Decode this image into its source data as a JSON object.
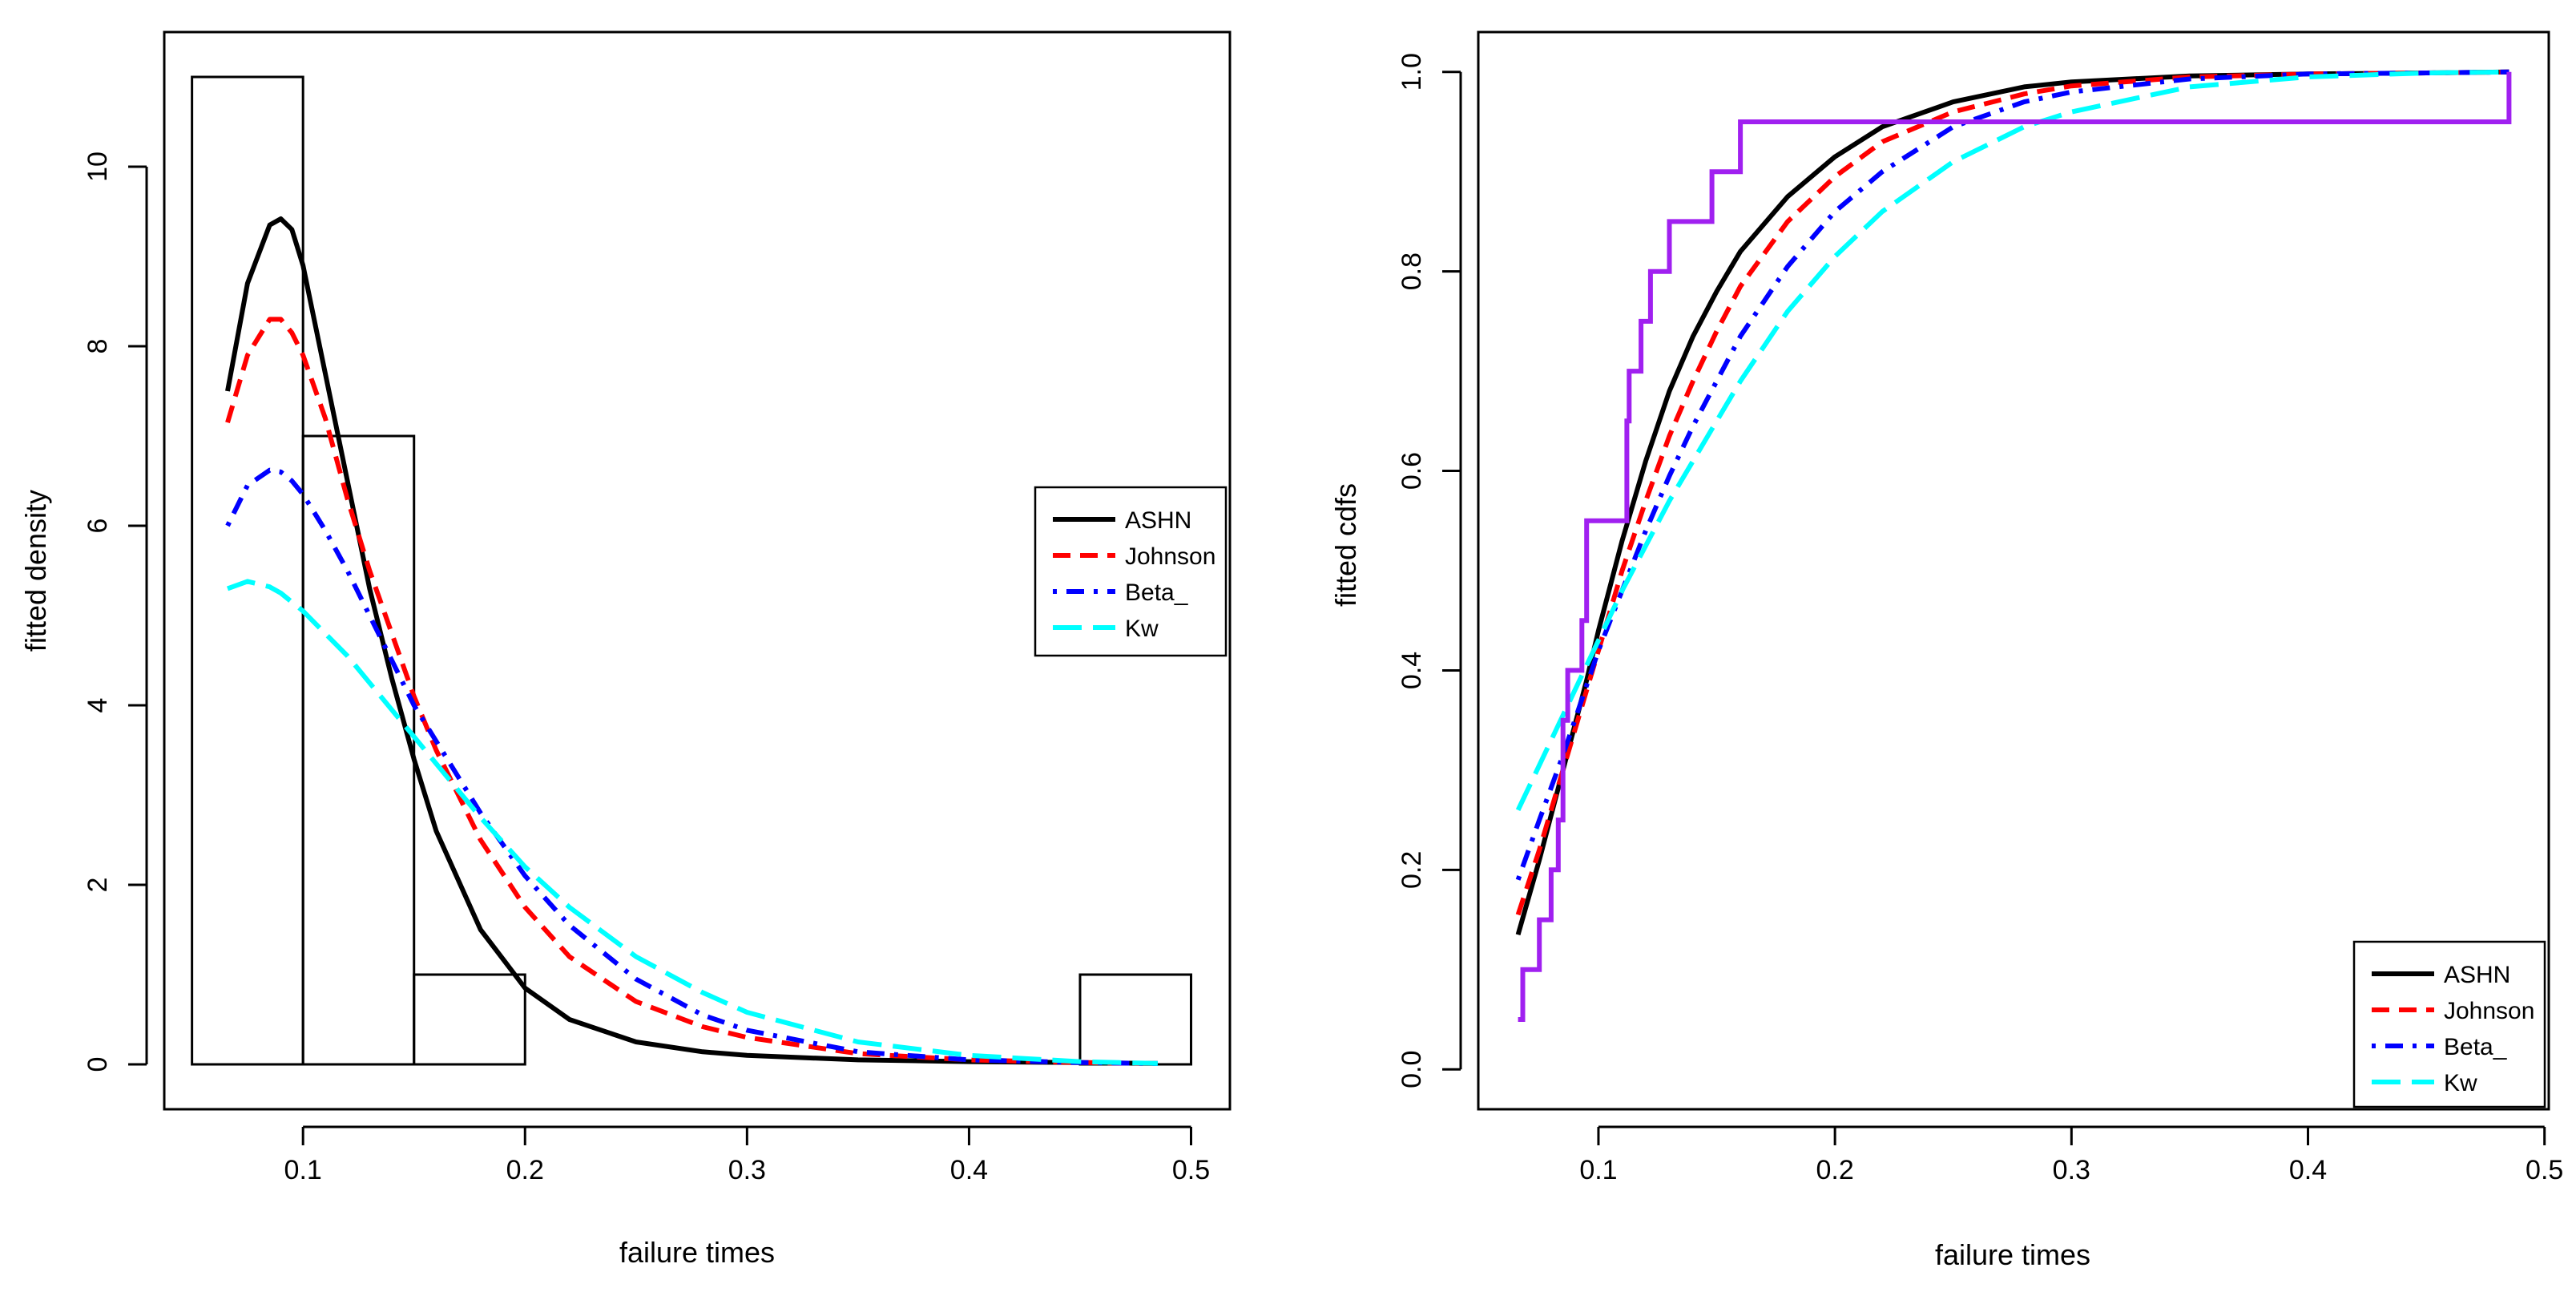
{
  "colors": {
    "asha": "#000000",
    "johnson": "#ff0000",
    "beta": "#0000ff",
    "kw": "#00ffff",
    "ecdf": "#a020f0"
  },
  "chart_data": [
    {
      "type": "histogram",
      "xlabel": "failure times",
      "ylabel": "fitted density",
      "xlim": [
        0.0375,
        0.5175
      ],
      "ylim": [
        -0.5,
        11.5
      ],
      "xticks": [
        0.1,
        0.2,
        0.3,
        0.4,
        0.5
      ],
      "xtick_labels": [
        "0.1",
        "0.2",
        "0.3",
        "0.4",
        "0.5"
      ],
      "yticks": [
        0,
        2,
        4,
        6,
        8,
        10
      ],
      "ytick_labels": [
        "0",
        "2",
        "4",
        "6",
        "8",
        "10"
      ],
      "bins": [
        {
          "from": 0.05,
          "to": 0.1,
          "density": 11
        },
        {
          "from": 0.1,
          "to": 0.15,
          "density": 7
        },
        {
          "from": 0.15,
          "to": 0.2,
          "density": 1
        },
        {
          "from": 0.2,
          "to": 0.25,
          "density": 0
        },
        {
          "from": 0.25,
          "to": 0.3,
          "density": 0
        },
        {
          "from": 0.3,
          "to": 0.35,
          "density": 0
        },
        {
          "from": 0.35,
          "to": 0.4,
          "density": 0
        },
        {
          "from": 0.4,
          "to": 0.45,
          "density": 0
        },
        {
          "from": 0.45,
          "to": 0.5,
          "density": 1
        }
      ],
      "legend": {
        "position": "right",
        "entries": [
          "ASHN",
          "Johnson",
          "Beta_",
          "Kw"
        ]
      },
      "series": [
        {
          "name": "ASHN",
          "style": "solid",
          "color": "#000000",
          "x": [
            0.066,
            0.075,
            0.085,
            0.09,
            0.095,
            0.1,
            0.11,
            0.12,
            0.13,
            0.14,
            0.15,
            0.16,
            0.18,
            0.2,
            0.22,
            0.25,
            0.28,
            0.3,
            0.35,
            0.4,
            0.45,
            0.485
          ],
          "y": [
            7.5,
            8.7,
            9.35,
            9.42,
            9.3,
            8.9,
            7.7,
            6.5,
            5.3,
            4.3,
            3.4,
            2.6,
            1.5,
            0.85,
            0.5,
            0.25,
            0.14,
            0.1,
            0.05,
            0.03,
            0.02,
            0.01
          ]
        },
        {
          "name": "Johnson",
          "style": "dashed",
          "color": "#ff0000",
          "x": [
            0.066,
            0.075,
            0.085,
            0.09,
            0.095,
            0.1,
            0.11,
            0.12,
            0.13,
            0.14,
            0.15,
            0.16,
            0.18,
            0.2,
            0.22,
            0.25,
            0.28,
            0.3,
            0.35,
            0.4,
            0.45,
            0.485
          ],
          "y": [
            7.15,
            7.9,
            8.3,
            8.3,
            8.15,
            7.9,
            7.2,
            6.3,
            5.5,
            4.8,
            4.1,
            3.5,
            2.5,
            1.75,
            1.2,
            0.7,
            0.42,
            0.3,
            0.12,
            0.05,
            0.02,
            0.01
          ]
        },
        {
          "name": "Beta_",
          "style": "dotdash",
          "color": "#0000ff",
          "x": [
            0.066,
            0.075,
            0.085,
            0.09,
            0.095,
            0.1,
            0.11,
            0.12,
            0.13,
            0.14,
            0.15,
            0.16,
            0.18,
            0.2,
            0.22,
            0.25,
            0.28,
            0.3,
            0.35,
            0.4,
            0.45,
            0.485
          ],
          "y": [
            6.0,
            6.45,
            6.62,
            6.6,
            6.5,
            6.35,
            5.95,
            5.5,
            5.0,
            4.5,
            4.0,
            3.6,
            2.8,
            2.1,
            1.55,
            0.95,
            0.55,
            0.38,
            0.14,
            0.05,
            0.02,
            0.01
          ]
        },
        {
          "name": "Kw",
          "style": "longdash",
          "color": "#00ffff",
          "x": [
            0.066,
            0.075,
            0.085,
            0.09,
            0.095,
            0.1,
            0.11,
            0.12,
            0.13,
            0.14,
            0.15,
            0.16,
            0.18,
            0.2,
            0.22,
            0.25,
            0.28,
            0.3,
            0.35,
            0.4,
            0.45,
            0.485
          ],
          "y": [
            5.3,
            5.38,
            5.32,
            5.25,
            5.15,
            5.05,
            4.8,
            4.55,
            4.25,
            3.95,
            3.65,
            3.35,
            2.75,
            2.2,
            1.75,
            1.2,
            0.8,
            0.58,
            0.25,
            0.1,
            0.03,
            0.01
          ]
        }
      ]
    },
    {
      "type": "line",
      "xlabel": "failure times",
      "ylabel": "fitted cdfs",
      "xlim": [
        0.0492,
        0.5018
      ],
      "ylim": [
        -0.04,
        1.04
      ],
      "xticks": [
        0.1,
        0.2,
        0.3,
        0.4,
        0.5
      ],
      "xtick_labels": [
        "0.1",
        "0.2",
        "0.3",
        "0.4",
        "0.5"
      ],
      "yticks": [
        0.0,
        0.2,
        0.4,
        0.6,
        0.8,
        1.0
      ],
      "ytick_labels": [
        "0.0",
        "0.2",
        "0.4",
        "0.6",
        "0.8",
        "1.0"
      ],
      "legend": {
        "position": "bottom-right",
        "entries": [
          "ASHN",
          "Johnson",
          "Beta_",
          "Kw"
        ]
      },
      "ecdf": {
        "color": "#a020f0",
        "x": [
          0.066,
          0.068,
          0.075,
          0.08,
          0.083,
          0.085,
          0.087,
          0.093,
          0.095,
          0.112,
          0.113,
          0.118,
          0.122,
          0.126,
          0.13,
          0.148,
          0.16,
          0.485
        ],
        "y": [
          0.05,
          0.1,
          0.15,
          0.2,
          0.25,
          0.35,
          0.4,
          0.45,
          0.55,
          0.65,
          0.7,
          0.75,
          0.8,
          0.8,
          0.85,
          0.9,
          0.95,
          1.0
        ]
      },
      "series": [
        {
          "name": "ASHN",
          "style": "solid",
          "color": "#000000",
          "x": [
            0.066,
            0.075,
            0.085,
            0.095,
            0.1,
            0.11,
            0.12,
            0.13,
            0.14,
            0.15,
            0.16,
            0.18,
            0.2,
            0.22,
            0.25,
            0.28,
            0.3,
            0.35,
            0.4,
            0.45,
            0.485
          ],
          "y": [
            0.135,
            0.21,
            0.3,
            0.39,
            0.44,
            0.53,
            0.61,
            0.68,
            0.735,
            0.78,
            0.82,
            0.875,
            0.915,
            0.945,
            0.97,
            0.985,
            0.99,
            0.996,
            0.998,
            0.999,
            1.0
          ]
        },
        {
          "name": "Johnson",
          "style": "dashed",
          "color": "#ff0000",
          "x": [
            0.066,
            0.075,
            0.085,
            0.095,
            0.1,
            0.11,
            0.12,
            0.13,
            0.14,
            0.15,
            0.16,
            0.18,
            0.2,
            0.22,
            0.25,
            0.28,
            0.3,
            0.35,
            0.4,
            0.45,
            0.485
          ],
          "y": [
            0.155,
            0.22,
            0.3,
            0.38,
            0.42,
            0.5,
            0.57,
            0.635,
            0.69,
            0.74,
            0.785,
            0.85,
            0.895,
            0.93,
            0.96,
            0.978,
            0.986,
            0.995,
            0.998,
            0.999,
            1.0
          ]
        },
        {
          "name": "Beta_",
          "style": "dotdash",
          "color": "#0000ff",
          "x": [
            0.066,
            0.075,
            0.085,
            0.095,
            0.1,
            0.11,
            0.12,
            0.13,
            0.14,
            0.15,
            0.16,
            0.18,
            0.2,
            0.22,
            0.25,
            0.28,
            0.3,
            0.35,
            0.4,
            0.45,
            0.485
          ],
          "y": [
            0.19,
            0.25,
            0.315,
            0.385,
            0.42,
            0.48,
            0.54,
            0.595,
            0.645,
            0.69,
            0.735,
            0.805,
            0.86,
            0.9,
            0.945,
            0.97,
            0.98,
            0.993,
            0.998,
            0.999,
            1.0
          ]
        },
        {
          "name": "Kw",
          "style": "longdash",
          "color": "#00ffff",
          "x": [
            0.066,
            0.075,
            0.085,
            0.095,
            0.1,
            0.11,
            0.12,
            0.13,
            0.14,
            0.15,
            0.16,
            0.18,
            0.2,
            0.22,
            0.25,
            0.28,
            0.3,
            0.35,
            0.4,
            0.45,
            0.485
          ],
          "y": [
            0.26,
            0.305,
            0.355,
            0.405,
            0.43,
            0.48,
            0.525,
            0.57,
            0.61,
            0.65,
            0.69,
            0.76,
            0.815,
            0.86,
            0.91,
            0.945,
            0.96,
            0.985,
            0.995,
            0.999,
            1.0
          ]
        }
      ]
    }
  ]
}
